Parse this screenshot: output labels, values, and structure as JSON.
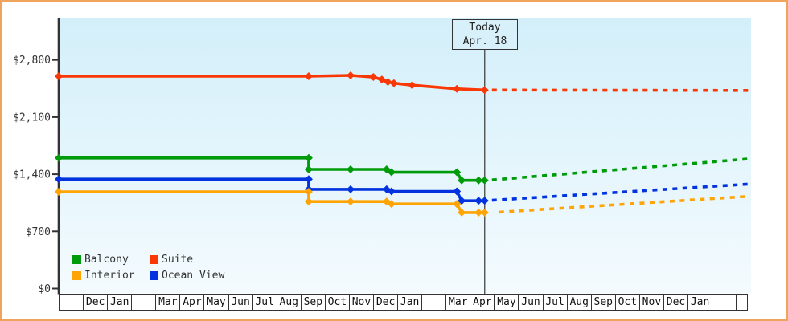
{
  "frame": {
    "border_color": "#EFA35C",
    "background": "#FFFFFF"
  },
  "chart_data": {
    "type": "line",
    "title": "",
    "xlabel": "",
    "ylabel": "",
    "background_gradient": [
      "#D3EFFA",
      "#F4FBFE"
    ],
    "grid": false,
    "legend_position": "bottom-left",
    "y_axis": {
      "tick_labels": [
        "$2,800",
        "$2,100",
        "$1,400",
        "$700",
        "$0"
      ],
      "tick_values": [
        2800,
        2100,
        1400,
        700,
        0
      ],
      "ylim": [
        0,
        3300
      ]
    },
    "x_axis": {
      "unit": "month",
      "cells": [
        "",
        "Dec",
        "Jan",
        "",
        "Mar",
        "Apr",
        "May",
        "Jun",
        "Jul",
        "Aug",
        "Sep",
        "Oct",
        "Nov",
        "Dec",
        "Jan",
        "",
        "Mar",
        "Apr",
        "May",
        "Jun",
        "Jul",
        "Aug",
        "Sep",
        "Oct",
        "Nov",
        "Dec",
        "Jan",
        "",
        ""
      ]
    },
    "today": {
      "t": 17.6,
      "box_line1": "Today",
      "box_line2": "Apr. 18"
    },
    "legend": [
      {
        "label": "Balcony",
        "color": "#009B0A"
      },
      {
        "label": "Suite",
        "color": "#F93806"
      },
      {
        "label": "Interior",
        "color": "#FFA405"
      },
      {
        "label": "Ocean View",
        "color": "#0233DE"
      }
    ],
    "series": [
      {
        "name": "Suite",
        "color": "#F93806",
        "solid": [
          [
            0,
            2600
          ],
          [
            10.33,
            2600
          ],
          [
            12.06,
            2610
          ],
          [
            13.0,
            2590
          ],
          [
            13.35,
            2560
          ],
          [
            13.6,
            2530
          ],
          [
            13.85,
            2515
          ],
          [
            14.6,
            2490
          ],
          [
            16.45,
            2445
          ],
          [
            17.6,
            2430
          ]
        ],
        "projection": [
          [
            17.9,
            2430
          ],
          [
            28.55,
            2425
          ]
        ]
      },
      {
        "name": "Balcony",
        "color": "#009B0A",
        "solid": [
          [
            0,
            1600
          ],
          [
            10.33,
            1600
          ],
          [
            10.33,
            1460
          ],
          [
            12.06,
            1460
          ],
          [
            13.55,
            1460
          ],
          [
            13.75,
            1425
          ],
          [
            16.45,
            1425
          ],
          [
            16.65,
            1325
          ],
          [
            17.35,
            1325
          ],
          [
            17.6,
            1325
          ]
        ],
        "projection": [
          [
            17.9,
            1330
          ],
          [
            28.55,
            1590
          ]
        ]
      },
      {
        "name": "Ocean View",
        "color": "#0233DE",
        "solid": [
          [
            0,
            1340
          ],
          [
            10.33,
            1340
          ],
          [
            10.33,
            1215
          ],
          [
            12.06,
            1215
          ],
          [
            13.55,
            1215
          ],
          [
            13.75,
            1190
          ],
          [
            16.45,
            1190
          ],
          [
            16.65,
            1075
          ],
          [
            17.35,
            1075
          ],
          [
            17.6,
            1075
          ]
        ],
        "projection": [
          [
            17.9,
            1080
          ],
          [
            28.55,
            1280
          ]
        ]
      },
      {
        "name": "Interior",
        "color": "#FFA405",
        "solid": [
          [
            0,
            1185
          ],
          [
            10.33,
            1185
          ],
          [
            10.33,
            1065
          ],
          [
            12.06,
            1065
          ],
          [
            13.55,
            1065
          ],
          [
            13.75,
            1035
          ],
          [
            16.45,
            1035
          ],
          [
            16.65,
            930
          ],
          [
            17.35,
            930
          ],
          [
            17.6,
            930
          ]
        ],
        "projection": [
          [
            18.2,
            935
          ],
          [
            28.55,
            1130
          ]
        ]
      }
    ]
  }
}
